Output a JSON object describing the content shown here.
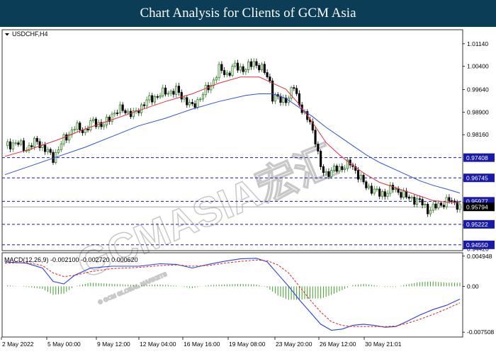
{
  "header": {
    "title": "Chart Analysis for Clients of GCM Asia"
  },
  "watermark": {
    "text": "GCMASIA宏汇",
    "subtext": "© GCM GLOBAL MARKETS"
  },
  "chart_data": {
    "type": "candlestick",
    "symbol": "USDCHF,H4",
    "price_ticks": [
      "1.01140",
      "1.00400",
      "0.99640",
      "0.98900",
      "0.98160",
      "0.96680",
      "0.95940",
      "0.95200",
      "0.94420"
    ],
    "levels": [
      {
        "value": 0.97408,
        "label": "0.97408"
      },
      {
        "value": 0.96745,
        "label": "0.96745"
      },
      {
        "value": 0.95977,
        "label": "0.95977"
      },
      {
        "value": 0.95222,
        "label": "0.95222"
      },
      {
        "value": 0.9455,
        "label": "0.94550"
      }
    ],
    "current_price": {
      "value": 0.95794,
      "label": "0.95794"
    },
    "ylim": [
      0.9436,
      1.016
    ],
    "close_path": [
      [
        0,
        0.978
      ],
      [
        4,
        0.979
      ],
      [
        8,
        0.977
      ],
      [
        12,
        0.9795
      ],
      [
        18,
        0.974
      ],
      [
        22,
        0.98
      ],
      [
        26,
        0.984
      ],
      [
        30,
        0.983
      ],
      [
        33,
        0.986
      ],
      [
        37,
        0.9845
      ],
      [
        40,
        0.9885
      ],
      [
        44,
        0.99
      ],
      [
        48,
        0.988
      ],
      [
        52,
        0.992
      ],
      [
        56,
        0.994
      ],
      [
        60,
        0.9955
      ],
      [
        64,
        0.996
      ],
      [
        68,
        0.9925
      ],
      [
        70,
        0.9905
      ],
      [
        73,
        0.994
      ],
      [
        77,
        0.998
      ],
      [
        80,
        1.003
      ],
      [
        83,
        1.0015
      ],
      [
        86,
        1.004
      ],
      [
        90,
        1.003
      ],
      [
        93,
        1.0055
      ],
      [
        96,
        1.003
      ],
      [
        98,
        1.001
      ],
      [
        99,
        0.999
      ],
      [
        100,
        0.994
      ],
      [
        103,
        0.993
      ],
      [
        106,
        0.9935
      ],
      [
        108,
        0.9975
      ],
      [
        110,
        0.992
      ],
      [
        112,
        0.9875
      ],
      [
        114,
        0.986
      ],
      [
        116,
        0.98
      ],
      [
        117,
        0.975
      ],
      [
        118,
        0.9705
      ],
      [
        120,
        0.969
      ],
      [
        123,
        0.97
      ],
      [
        126,
        0.971
      ],
      [
        129,
        0.972
      ],
      [
        131,
        0.97
      ],
      [
        133,
        0.967
      ],
      [
        135,
        0.9645
      ],
      [
        137,
        0.964
      ],
      [
        140,
        0.962
      ],
      [
        142,
        0.9625
      ],
      [
        145,
        0.964
      ],
      [
        148,
        0.9625
      ],
      [
        150,
        0.961
      ],
      [
        153,
        0.9605
      ],
      [
        156,
        0.959
      ],
      [
        158,
        0.957
      ],
      [
        160,
        0.9575
      ],
      [
        163,
        0.959
      ],
      [
        166,
        0.96
      ],
      [
        169,
        0.9589
      ],
      [
        170,
        0.95794
      ]
    ],
    "ma_fast": [
      [
        0,
        0.9745
      ],
      [
        10,
        0.977
      ],
      [
        20,
        0.98
      ],
      [
        30,
        0.9835
      ],
      [
        40,
        0.9865
      ],
      [
        50,
        0.9895
      ],
      [
        60,
        0.9925
      ],
      [
        70,
        0.995
      ],
      [
        80,
        0.9985
      ],
      [
        88,
        1.0005
      ],
      [
        95,
        1.0005
      ],
      [
        100,
        0.9985
      ],
      [
        105,
        0.9965
      ],
      [
        110,
        0.9915
      ],
      [
        115,
        0.9855
      ],
      [
        120,
        0.979
      ],
      [
        125,
        0.975
      ],
      [
        130,
        0.9715
      ],
      [
        135,
        0.9685
      ],
      [
        140,
        0.966
      ],
      [
        145,
        0.9645
      ],
      [
        150,
        0.963
      ],
      [
        155,
        0.9615
      ],
      [
        160,
        0.96
      ],
      [
        165,
        0.9595
      ],
      [
        170,
        0.9592
      ]
    ],
    "ma_slow": [
      [
        0,
        0.9685
      ],
      [
        10,
        0.9715
      ],
      [
        20,
        0.9745
      ],
      [
        30,
        0.9775
      ],
      [
        40,
        0.981
      ],
      [
        50,
        0.9845
      ],
      [
        60,
        0.987
      ],
      [
        70,
        0.99
      ],
      [
        80,
        0.9925
      ],
      [
        90,
        0.9945
      ],
      [
        95,
        0.995
      ],
      [
        100,
        0.995
      ],
      [
        105,
        0.9935
      ],
      [
        110,
        0.9905
      ],
      [
        115,
        0.9875
      ],
      [
        120,
        0.984
      ],
      [
        125,
        0.981
      ],
      [
        130,
        0.978
      ],
      [
        135,
        0.975
      ],
      [
        140,
        0.9725
      ],
      [
        145,
        0.9705
      ],
      [
        150,
        0.9685
      ],
      [
        155,
        0.9665
      ],
      [
        160,
        0.965
      ],
      [
        165,
        0.9638
      ],
      [
        170,
        0.9625
      ]
    ],
    "macd": {
      "label": "MACD(12,26,9) -0.002100 -0.002720 0.000620",
      "ticks": [
        {
          "value": 0.004948,
          "label": "0.004948"
        },
        {
          "value": 0.0,
          "label": "0.00"
        },
        {
          "value": -0.007508,
          "label": "-0.007508"
        }
      ],
      "ylim": [
        -0.0083,
        0.0055
      ],
      "macd_line": [
        [
          0,
          0.004
        ],
        [
          8,
          0.0038
        ],
        [
          14,
          0.003
        ],
        [
          18,
          0.0008
        ],
        [
          22,
          0.0004
        ],
        [
          26,
          0.0018
        ],
        [
          32,
          0.003
        ],
        [
          40,
          0.0033
        ],
        [
          50,
          0.0033
        ],
        [
          58,
          0.0037
        ],
        [
          64,
          0.0036
        ],
        [
          70,
          0.003
        ],
        [
          76,
          0.0036
        ],
        [
          82,
          0.0041
        ],
        [
          88,
          0.0045
        ],
        [
          94,
          0.0046
        ],
        [
          98,
          0.004
        ],
        [
          102,
          0.002
        ],
        [
          106,
          0.0
        ],
        [
          110,
          -0.0022
        ],
        [
          114,
          -0.0042
        ],
        [
          118,
          -0.0062
        ],
        [
          122,
          -0.0072
        ],
        [
          126,
          -0.007
        ],
        [
          130,
          -0.0064
        ],
        [
          134,
          -0.0062
        ],
        [
          138,
          -0.0064
        ],
        [
          142,
          -0.0067
        ],
        [
          146,
          -0.0066
        ],
        [
          150,
          -0.0058
        ],
        [
          155,
          -0.0047
        ],
        [
          160,
          -0.0038
        ],
        [
          165,
          -0.0031
        ],
        [
          170,
          -0.0021
        ]
      ],
      "signal_line": [
        [
          0,
          0.0038
        ],
        [
          8,
          0.0039
        ],
        [
          14,
          0.0034
        ],
        [
          18,
          0.0022
        ],
        [
          22,
          0.0016
        ],
        [
          26,
          0.0018
        ],
        [
          32,
          0.0024
        ],
        [
          40,
          0.0029
        ],
        [
          50,
          0.0031
        ],
        [
          58,
          0.0034
        ],
        [
          64,
          0.0035
        ],
        [
          70,
          0.0033
        ],
        [
          76,
          0.0034
        ],
        [
          82,
          0.0038
        ],
        [
          88,
          0.0041
        ],
        [
          94,
          0.0043
        ],
        [
          98,
          0.0042
        ],
        [
          102,
          0.0035
        ],
        [
          106,
          0.0022
        ],
        [
          110,
          0.0
        ],
        [
          114,
          -0.0022
        ],
        [
          118,
          -0.0042
        ],
        [
          122,
          -0.0058
        ],
        [
          126,
          -0.0064
        ],
        [
          130,
          -0.0066
        ],
        [
          134,
          -0.0066
        ],
        [
          138,
          -0.0066
        ],
        [
          142,
          -0.0066
        ],
        [
          146,
          -0.0065
        ],
        [
          150,
          -0.0061
        ],
        [
          155,
          -0.0054
        ],
        [
          160,
          -0.0046
        ],
        [
          165,
          -0.0037
        ],
        [
          170,
          -0.0027
        ]
      ]
    },
    "x_ticks": [
      "2 May 2022",
      "5 May 00:00",
      "9 May 12:00",
      "12 May 04:00",
      "16 May 16:00",
      "19 May 08:00",
      "23 May 20:00",
      "26 May 12:00",
      "30 May 21:01"
    ],
    "colors": {
      "bull": "#2e7d1f",
      "bear": "#000000",
      "ma_fast": "#e03040",
      "ma_slow": "#3050d8",
      "level": "#1a1aa8",
      "price_tag": "#1a1aa8",
      "macd": "#2a40e0",
      "signal": "#e02020",
      "hist": "#3e9e28"
    }
  }
}
